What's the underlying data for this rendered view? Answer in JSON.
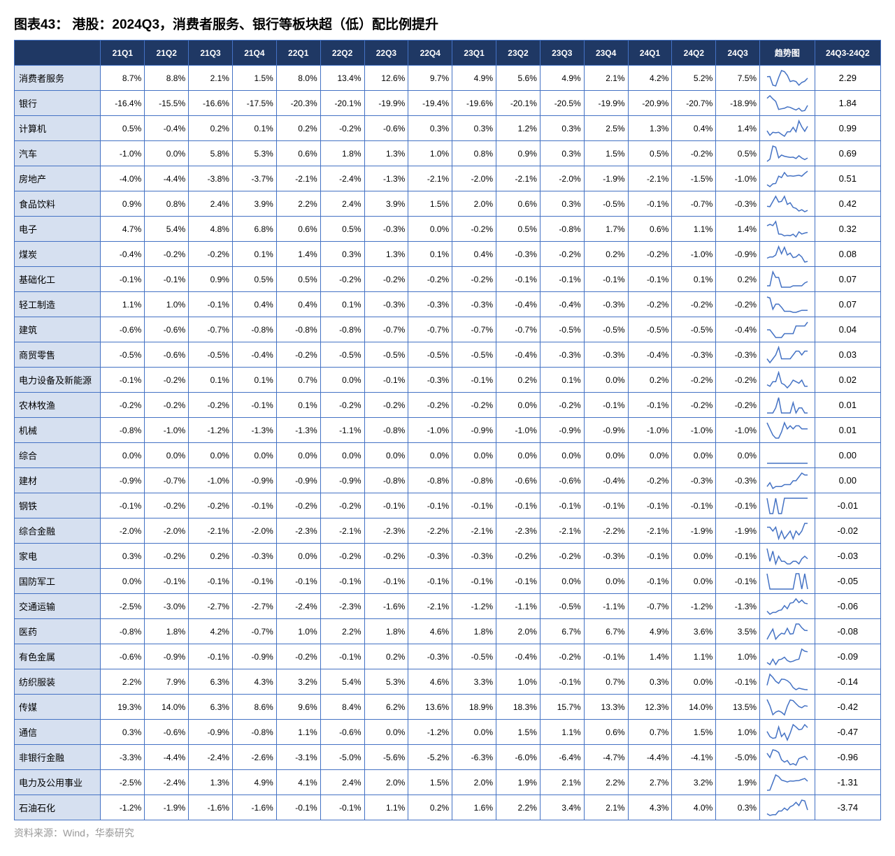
{
  "title": "图表43：  港股：2024Q3，消费者服务、银行等板块超（低）配比例提升",
  "footnote": "资料来源：Wind，华泰研究",
  "quarter_headers": [
    "21Q1",
    "21Q2",
    "21Q3",
    "21Q4",
    "22Q1",
    "22Q2",
    "22Q3",
    "22Q4",
    "23Q1",
    "23Q2",
    "23Q3",
    "23Q4",
    "24Q1",
    "24Q2",
    "24Q3"
  ],
  "spark_header": "趋势图",
  "diff_header": "24Q3-24Q2",
  "sparkline_color": "#4472c4",
  "header_bg": "#1f3864",
  "header_fg": "#ffffff",
  "sector_bg": "#d6e0f0",
  "cell_border": "#4472c4",
  "rows": [
    {
      "sector": "消费者服务",
      "values": [
        8.7,
        8.8,
        2.1,
        1.5,
        8.0,
        13.4,
        12.6,
        9.7,
        4.9,
        5.6,
        4.9,
        2.1,
        4.2,
        5.2,
        7.5
      ],
      "diff": "2.29"
    },
    {
      "sector": "银行",
      "values": [
        -16.4,
        -15.5,
        -16.6,
        -17.5,
        -20.3,
        -20.1,
        -19.9,
        -19.4,
        -19.6,
        -20.1,
        -20.5,
        -19.9,
        -20.9,
        -20.7,
        -18.9
      ],
      "diff": "1.84"
    },
    {
      "sector": "计算机",
      "values": [
        0.5,
        -0.4,
        0.2,
        0.1,
        0.2,
        -0.2,
        -0.6,
        0.3,
        0.3,
        1.2,
        0.3,
        2.5,
        1.3,
        0.4,
        1.4
      ],
      "diff": "0.99"
    },
    {
      "sector": "汽车",
      "values": [
        -1.0,
        0.0,
        5.8,
        5.3,
        0.6,
        1.8,
        1.3,
        1.0,
        0.8,
        0.9,
        0.3,
        1.5,
        0.5,
        -0.2,
        0.5
      ],
      "diff": "0.69"
    },
    {
      "sector": "房地产",
      "values": [
        -4.0,
        -4.4,
        -3.8,
        -3.7,
        -2.1,
        -2.4,
        -1.3,
        -2.1,
        -2.0,
        -2.1,
        -2.0,
        -1.9,
        -2.1,
        -1.5,
        -1.0
      ],
      "diff": "0.51"
    },
    {
      "sector": "食品饮料",
      "values": [
        0.9,
        0.8,
        2.4,
        3.9,
        2.2,
        2.4,
        3.9,
        1.5,
        2.0,
        0.6,
        0.3,
        -0.5,
        -0.1,
        -0.7,
        -0.3
      ],
      "diff": "0.42"
    },
    {
      "sector": "电子",
      "values": [
        4.7,
        5.4,
        4.8,
        6.8,
        0.6,
        0.5,
        -0.3,
        0.0,
        -0.2,
        0.5,
        -0.8,
        1.7,
        0.6,
        1.1,
        1.4
      ],
      "diff": "0.32"
    },
    {
      "sector": "煤炭",
      "values": [
        -0.4,
        -0.2,
        -0.2,
        0.1,
        1.4,
        0.3,
        1.3,
        0.1,
        0.4,
        -0.3,
        -0.2,
        0.2,
        -0.2,
        -1.0,
        -0.9
      ],
      "diff": "0.08"
    },
    {
      "sector": "基础化工",
      "values": [
        -0.1,
        -0.1,
        0.9,
        0.5,
        0.5,
        -0.2,
        -0.2,
        -0.2,
        -0.2,
        -0.1,
        -0.1,
        -0.1,
        -0.1,
        0.1,
        0.2
      ],
      "diff": "0.07"
    },
    {
      "sector": "轻工制造",
      "values": [
        1.1,
        1.0,
        -0.1,
        0.4,
        0.4,
        0.1,
        -0.3,
        -0.3,
        -0.3,
        -0.4,
        -0.4,
        -0.3,
        -0.2,
        -0.2,
        -0.2
      ],
      "diff": "0.07"
    },
    {
      "sector": "建筑",
      "values": [
        -0.6,
        -0.6,
        -0.7,
        -0.8,
        -0.8,
        -0.8,
        -0.7,
        -0.7,
        -0.7,
        -0.7,
        -0.5,
        -0.5,
        -0.5,
        -0.5,
        -0.4
      ],
      "diff": "0.04"
    },
    {
      "sector": "商贸零售",
      "values": [
        -0.5,
        -0.6,
        -0.5,
        -0.4,
        -0.2,
        -0.5,
        -0.5,
        -0.5,
        -0.5,
        -0.4,
        -0.3,
        -0.3,
        -0.4,
        -0.3,
        -0.3
      ],
      "diff": "0.03"
    },
    {
      "sector": "电力设备及新能源",
      "values": [
        -0.1,
        -0.2,
        0.1,
        0.1,
        0.7,
        0.0,
        -0.1,
        -0.3,
        -0.1,
        0.2,
        0.1,
        0.0,
        0.2,
        -0.2,
        -0.2
      ],
      "diff": "0.02"
    },
    {
      "sector": "农林牧渔",
      "values": [
        -0.2,
        -0.2,
        -0.2,
        -0.1,
        0.1,
        -0.2,
        -0.2,
        -0.2,
        -0.2,
        0.0,
        -0.2,
        -0.1,
        -0.1,
        -0.2,
        -0.2
      ],
      "diff": "0.01"
    },
    {
      "sector": "机械",
      "values": [
        -0.8,
        -1.0,
        -1.2,
        -1.3,
        -1.3,
        -1.1,
        -0.8,
        -1.0,
        -0.9,
        -1.0,
        -0.9,
        -0.9,
        -1.0,
        -1.0,
        -1.0
      ],
      "diff": "0.01"
    },
    {
      "sector": "综合",
      "values": [
        0.0,
        0.0,
        0.0,
        0.0,
        0.0,
        0.0,
        0.0,
        0.0,
        0.0,
        0.0,
        0.0,
        0.0,
        0.0,
        0.0,
        0.0
      ],
      "diff": "0.00"
    },
    {
      "sector": "建材",
      "values": [
        -0.9,
        -0.7,
        -1.0,
        -0.9,
        -0.9,
        -0.9,
        -0.8,
        -0.8,
        -0.8,
        -0.6,
        -0.6,
        -0.4,
        -0.2,
        -0.3,
        -0.3
      ],
      "diff": "0.00"
    },
    {
      "sector": "钢铁",
      "values": [
        -0.1,
        -0.2,
        -0.2,
        -0.1,
        -0.2,
        -0.2,
        -0.1,
        -0.1,
        -0.1,
        -0.1,
        -0.1,
        -0.1,
        -0.1,
        -0.1,
        -0.1
      ],
      "diff": "-0.01"
    },
    {
      "sector": "综合金融",
      "values": [
        -2.0,
        -2.0,
        -2.1,
        -2.0,
        -2.3,
        -2.1,
        -2.3,
        -2.2,
        -2.1,
        -2.3,
        -2.1,
        -2.2,
        -2.1,
        -1.9,
        -1.9
      ],
      "diff": "-0.02"
    },
    {
      "sector": "家电",
      "values": [
        0.3,
        -0.2,
        0.2,
        -0.3,
        0.0,
        -0.2,
        -0.2,
        -0.3,
        -0.3,
        -0.2,
        -0.2,
        -0.3,
        -0.1,
        0.0,
        -0.1
      ],
      "diff": "-0.03"
    },
    {
      "sector": "国防军工",
      "values": [
        0.0,
        -0.1,
        -0.1,
        -0.1,
        -0.1,
        -0.1,
        -0.1,
        -0.1,
        -0.1,
        -0.1,
        0.0,
        0.0,
        -0.1,
        0.0,
        -0.1
      ],
      "diff": "-0.05"
    },
    {
      "sector": "交通运输",
      "values": [
        -2.5,
        -3.0,
        -2.7,
        -2.7,
        -2.4,
        -2.3,
        -1.6,
        -2.1,
        -1.2,
        -1.1,
        -0.5,
        -1.1,
        -0.7,
        -1.2,
        -1.3
      ],
      "diff": "-0.06"
    },
    {
      "sector": "医药",
      "values": [
        -0.8,
        1.8,
        4.2,
        -0.7,
        1.0,
        2.2,
        1.8,
        4.6,
        1.8,
        2.0,
        6.7,
        6.7,
        4.9,
        3.6,
        3.5
      ],
      "diff": "-0.08"
    },
    {
      "sector": "有色金属",
      "values": [
        -0.6,
        -0.9,
        -0.1,
        -0.9,
        -0.2,
        -0.1,
        0.2,
        -0.3,
        -0.5,
        -0.4,
        -0.2,
        -0.1,
        1.4,
        1.1,
        1.0
      ],
      "diff": "-0.09"
    },
    {
      "sector": "纺织服装",
      "values": [
        2.2,
        7.9,
        6.3,
        4.3,
        3.2,
        5.4,
        5.3,
        4.6,
        3.3,
        1.0,
        -0.1,
        0.7,
        0.3,
        0.0,
        -0.1
      ],
      "diff": "-0.14"
    },
    {
      "sector": "传媒",
      "values": [
        19.3,
        14.0,
        6.3,
        8.6,
        9.6,
        8.4,
        6.2,
        13.6,
        18.9,
        18.3,
        15.7,
        13.3,
        12.3,
        14.0,
        13.5
      ],
      "diff": "-0.42"
    },
    {
      "sector": "通信",
      "values": [
        0.3,
        -0.6,
        -0.9,
        -0.8,
        1.1,
        -0.6,
        0.0,
        -1.2,
        0.0,
        1.5,
        1.1,
        0.6,
        0.7,
        1.5,
        1.0
      ],
      "diff": "-0.47"
    },
    {
      "sector": "非银行金融",
      "values": [
        -3.3,
        -4.4,
        -2.4,
        -2.6,
        -3.1,
        -5.0,
        -5.6,
        -5.2,
        -6.3,
        -6.0,
        -6.4,
        -4.7,
        -4.4,
        -4.1,
        -5.0
      ],
      "diff": "-0.96"
    },
    {
      "sector": "电力及公用事业",
      "values": [
        -2.5,
        -2.4,
        1.3,
        4.9,
        4.1,
        2.4,
        2.0,
        1.5,
        2.0,
        1.9,
        2.1,
        2.2,
        2.7,
        3.2,
        1.9
      ],
      "diff": "-1.31"
    },
    {
      "sector": "石油石化",
      "values": [
        -1.2,
        -1.9,
        -1.6,
        -1.6,
        -0.1,
        -0.1,
        1.1,
        0.2,
        1.6,
        2.2,
        3.4,
        2.1,
        4.3,
        4.0,
        0.3
      ],
      "diff": "-3.74"
    }
  ]
}
